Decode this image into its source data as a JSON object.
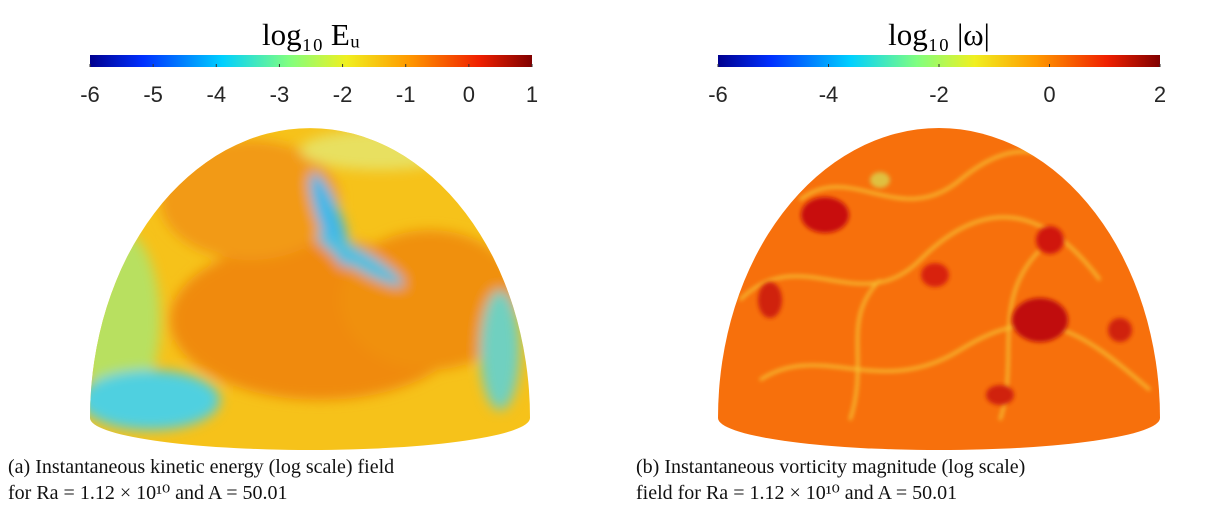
{
  "panels": [
    {
      "colorbar": {
        "title": "log₁₀ Eᵤ",
        "lim": [
          -6,
          1
        ],
        "ticks": [
          -6,
          -5,
          -4,
          -3,
          -2,
          -1,
          0,
          1
        ]
      },
      "caption": [
        "(a) Instantaneous kinetic energy (log scale) field",
        "for Ra = 1.12 × 10¹⁰ and A = 50.01"
      ]
    },
    {
      "colorbar": {
        "title": "log₁₀ |ω|",
        "lim": [
          -6,
          2
        ],
        "ticks": [
          -6,
          -4,
          -2,
          0,
          2
        ]
      },
      "caption": [
        "(b) Instantaneous vorticity magnitude (log scale)",
        "field for Ra = 1.12 × 10¹⁰ and A = 50.01"
      ]
    }
  ]
}
